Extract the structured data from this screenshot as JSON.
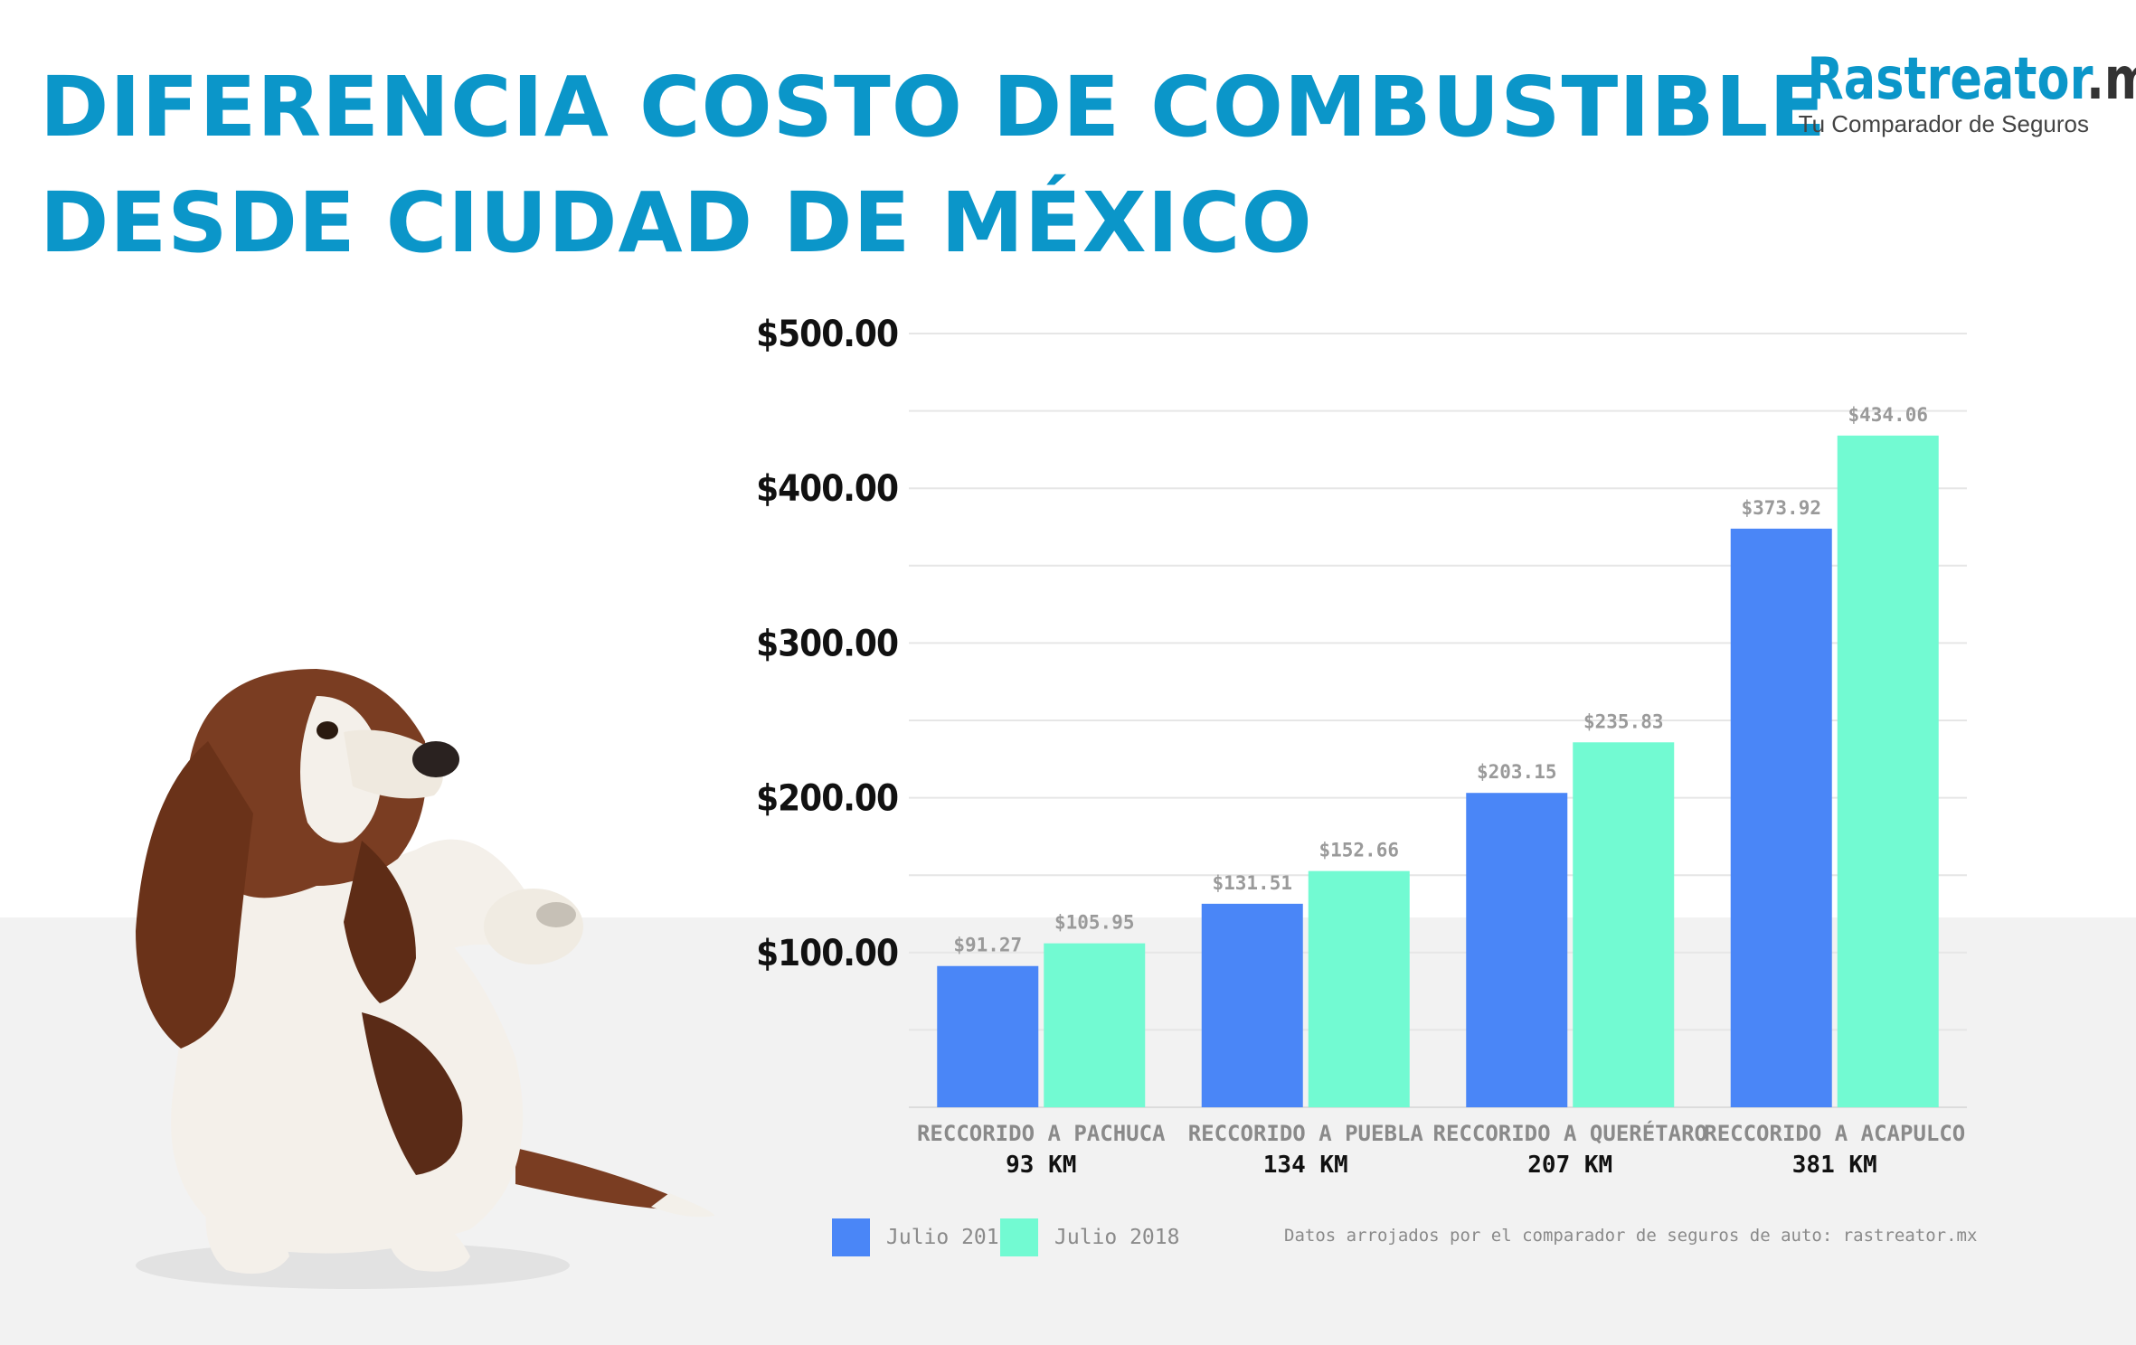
{
  "title_line1": "DIFERENCIA COSTO DE COMBUSTIBLE",
  "title_line2": "DESDE CIUDAD DE MÉXICO",
  "logo": {
    "brand": "Rastreator",
    "suffix": ".mx",
    "tagline": "Tu Comparador de Seguros"
  },
  "colors": {
    "title": "#0b96c9",
    "series_2017": "#4a86f7",
    "series_2018": "#72fad2",
    "ground": "#f2f2f2"
  },
  "source": "Datos arrojados por el comparador de seguros de auto: rastreator.mx",
  "chart_data": {
    "type": "bar",
    "title": "",
    "xlabel": "",
    "ylabel": "",
    "categories": [
      "RECCORIDO A PACHUCA",
      "RECCORIDO A PUEBLA",
      "RECCORIDO A QUERÉTARO",
      "RECCORIDO A ACAPULCO"
    ],
    "distances": [
      "93 KM",
      "134 KM",
      "207 KM",
      "381 KM"
    ],
    "series": [
      {
        "name": "Julio 2017",
        "values": [
          91.27,
          131.51,
          203.15,
          373.92
        ],
        "labels": [
          "$91.27",
          "$131.51",
          "$203.15",
          "$373.92"
        ],
        "color": "#4a86f7"
      },
      {
        "name": "Julio 2018",
        "values": [
          105.95,
          152.66,
          235.83,
          434.06
        ],
        "labels": [
          "$105.95",
          "$152.66",
          "$235.83",
          "$434.06"
        ],
        "color": "#72fad2"
      }
    ],
    "ylim": [
      0,
      500
    ],
    "yticks": [
      100,
      200,
      300,
      400,
      500
    ],
    "ytick_labels": [
      "$100.00",
      "$200.00",
      "$300.00",
      "$400.00",
      "$500.00"
    ],
    "grid": true,
    "legend": "bottom-left"
  }
}
